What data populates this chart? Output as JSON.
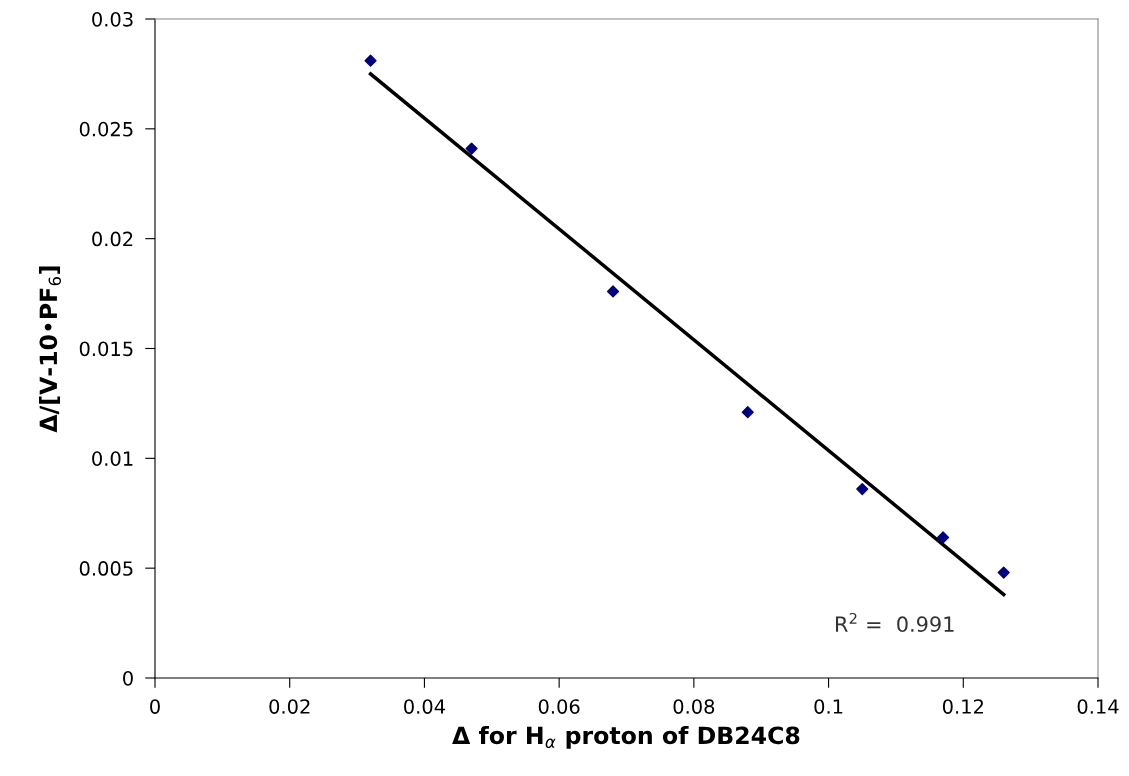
{
  "chart_data": {
    "type": "scatter",
    "xlabel": "Δ for H$_{α}$ proton of DB24C8",
    "ylabel": "Δ/[V-10•PF$_{6}$]",
    "x": [
      0.032,
      0.047,
      0.068,
      0.088,
      0.105,
      0.117,
      0.126
    ],
    "series": [
      {
        "color": "#000080",
        "marker": "diamond",
        "values": [
          0.0281,
          0.0241,
          0.0176,
          0.0121,
          0.0086,
          0.0064,
          0.0048
        ]
      },
      {
        "type": "line",
        "color": "#000000",
        "x": [
          0.032,
          0.126
        ],
        "values": [
          0.0275,
          0.0038
        ],
        "marker": "none",
        "line_style": "solid"
      }
    ],
    "annotations": [
      "R$^{2}$ =  0.991"
    ],
    "xlim": [
      0,
      0.14
    ],
    "xticks": [
      0,
      0.02,
      0.04,
      0.06,
      0.08,
      0.1,
      0.12,
      0.14
    ],
    "ylim": [
      0,
      0.03
    ],
    "yticks": [
      0,
      0.005,
      0.01,
      0.015,
      0.02,
      0.025,
      0.03
    ],
    "grid": false,
    "legend": false
  }
}
